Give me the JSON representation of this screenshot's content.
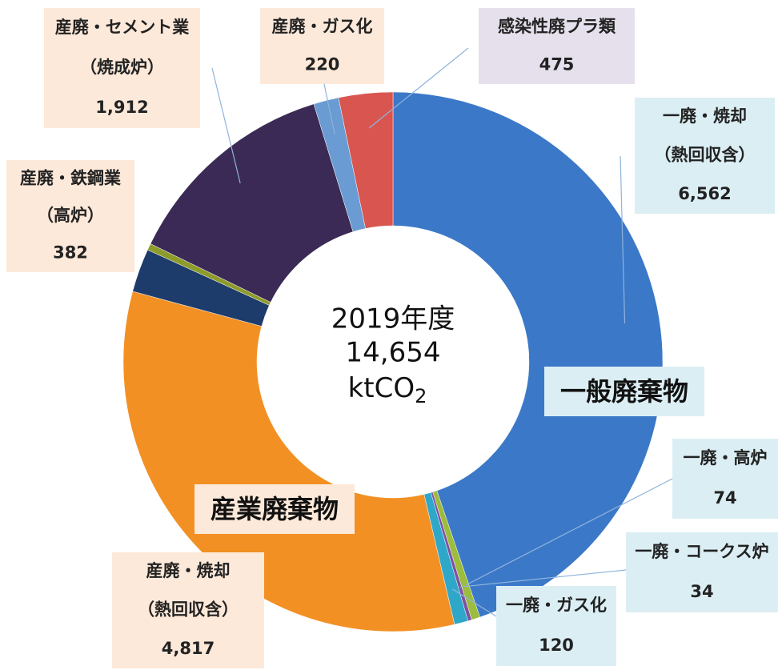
{
  "chart_data": {
    "type": "pie",
    "donut": true,
    "center_text": {
      "year": "2019年度",
      "total": "14,654",
      "unit": "ktCO",
      "unit_sub": "2"
    },
    "annotations": [
      "一般廃棄物",
      "産業廃棄物"
    ],
    "categories": [
      [
        "一廃・焼却",
        "（熱回収含）"
      ],
      [
        "一廃・高炉"
      ],
      [
        "一廃・コークス炉"
      ],
      [
        "一廃・ガス化"
      ],
      [
        "産廃・焼却",
        "（熱回収含）"
      ],
      [
        "産廃・鉄鋼業",
        "（高炉）"
      ],
      null,
      [
        "産廃・セメント業",
        "（焼成炉）"
      ],
      [
        "産廃・ガス化"
      ],
      [
        "感染性廃プラ類"
      ]
    ],
    "values": [
      6562,
      74,
      34,
      120,
      4817,
      382,
      58,
      1912,
      220,
      475
    ],
    "value_labels": [
      "6,562",
      "74",
      "34",
      "120",
      "4,817",
      "382",
      null,
      "1,912",
      "220",
      "475"
    ],
    "colors": [
      "#3b78c8",
      "#9cbc3c",
      "#7c52a2",
      "#2fa7c9",
      "#f29024",
      "#1e3c6b",
      "#8d9b2c",
      "#3a2a55",
      "#6a9bd2",
      "#d95550"
    ]
  }
}
